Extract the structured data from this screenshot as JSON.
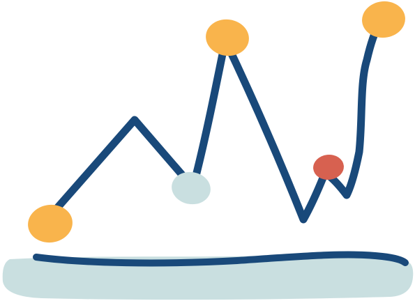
{
  "illustration": {
    "colors": {
      "line": "#19497A",
      "highlight": "#F9B44C",
      "neutral": "#C9DFE0",
      "alert": "#D76150",
      "ground": "#C9DFE0",
      "background": "#FFFFFF"
    },
    "markers": [
      {
        "name": "start-marker",
        "tone": "highlight"
      },
      {
        "name": "dip-marker",
        "tone": "neutral"
      },
      {
        "name": "peak-marker",
        "tone": "highlight"
      },
      {
        "name": "alert-marker",
        "tone": "alert"
      },
      {
        "name": "end-marker",
        "tone": "highlight"
      }
    ]
  }
}
